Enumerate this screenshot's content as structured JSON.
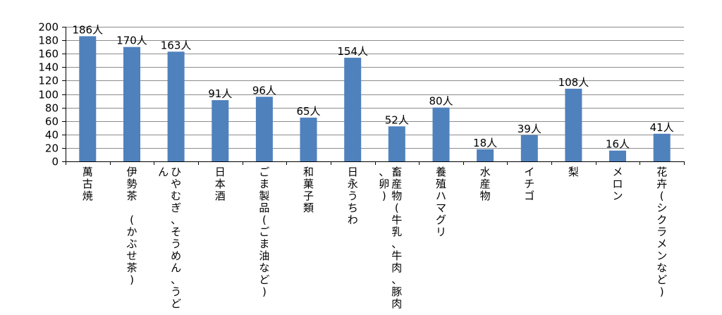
{
  "chart_data": {
    "type": "bar",
    "categories": [
      "萬古焼",
      "伊勢茶 (かぶせ茶)",
      "ひやむぎ、そうめん、うどん",
      "日本酒",
      "ごま製品(ごま油など)",
      "和菓子類",
      "日永うちわ",
      "畜産物(牛乳、牛肉、豚肉、卵)",
      "養殖ハマグリ",
      "水産物",
      "イチゴ",
      "梨",
      "メロン",
      "花卉(シクラメンなど)"
    ],
    "values": [
      186,
      170,
      163,
      91,
      96,
      65,
      154,
      52,
      80,
      18,
      39,
      108,
      16,
      41
    ],
    "data_labels": [
      "186人",
      "170人",
      "163人",
      "91人",
      "96人",
      "65人",
      "154人",
      "52人",
      "80人",
      "18人",
      "39人",
      "108人",
      "16人",
      "41人"
    ],
    "title": "",
    "xlabel": "",
    "ylabel": "",
    "ylim": [
      0,
      200
    ],
    "yticks": [
      0,
      20,
      40,
      60,
      80,
      100,
      120,
      140,
      160,
      180,
      200
    ],
    "grid": true,
    "legend": "none",
    "bar_color": "#4f81bd"
  }
}
